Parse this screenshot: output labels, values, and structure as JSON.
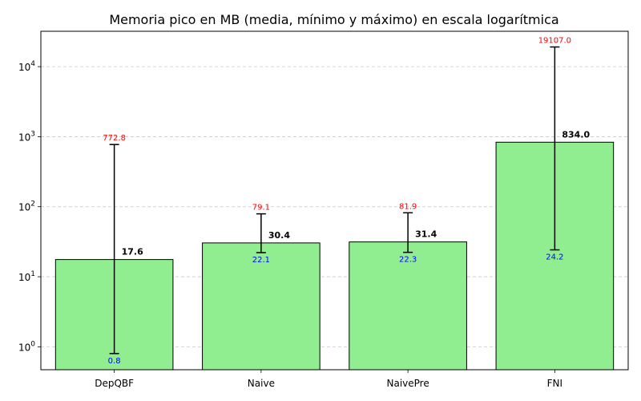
{
  "chart_data": {
    "type": "bar",
    "title": "Memoria pico en MB (media, mínimo y máximo) en escala logarítmica",
    "xlabel": "",
    "ylabel": "",
    "yscale": "log",
    "ylim": [
      0.47,
      32000
    ],
    "grid": "y-dashed",
    "categories": [
      "DepQBF",
      "Naive",
      "NaivePre",
      "FNI"
    ],
    "series": [
      {
        "values": [
          17.6,
          30.4,
          31.4,
          834.0
        ]
      }
    ],
    "error_min": [
      0.8,
      22.1,
      22.3,
      24.2
    ],
    "error_max": [
      772.8,
      79.1,
      81.9,
      19107.0
    ],
    "mean_labels": [
      "17.6",
      "30.4",
      "31.4",
      "834.0"
    ],
    "min_labels": [
      "0.8",
      "22.1",
      "22.3",
      "24.2"
    ],
    "max_labels": [
      "772.8",
      "79.1",
      "81.9",
      "19107.0"
    ],
    "yticks": [
      {
        "value": 1,
        "base": "10",
        "exp": "0"
      },
      {
        "value": 10,
        "base": "10",
        "exp": "1"
      },
      {
        "value": 100,
        "base": "10",
        "exp": "2"
      },
      {
        "value": 1000,
        "base": "10",
        "exp": "3"
      },
      {
        "value": 10000,
        "base": "10",
        "exp": "4"
      }
    ],
    "colors": {
      "bar_fill": "#90ee90",
      "bar_edge": "#000000",
      "max_label": "#ff0000",
      "min_label": "#0000ff",
      "grid": "#c8c8c8",
      "error": "#000000"
    }
  }
}
